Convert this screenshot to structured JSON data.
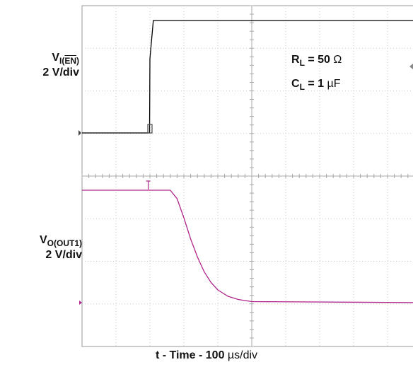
{
  "chart_data": {
    "type": "line",
    "title": "",
    "xlabel_prefix": "t - Time - 100 ",
    "xlabel_unit": "µs/div",
    "conditions": {
      "rl_sym": "R",
      "rl_sub": "L",
      "rl_eq": " = 50 ",
      "rl_unit": "Ω",
      "cl_sym": "C",
      "cl_sub": "L",
      "cl_eq": " = 1 ",
      "cl_unit": "µF"
    },
    "channels": [
      {
        "name_main": "V",
        "name_sub_pre": "I(",
        "name_sub_bar": "EN",
        "name_sub_post": ")",
        "scale": "2 V/div",
        "color": "#000000"
      },
      {
        "name_main": "V",
        "name_sub": "O(OUT1)",
        "scale": "2 V/div",
        "color": "#b0268c"
      }
    ],
    "x_unit": "div",
    "y_unit": "V",
    "xlim": [
      0,
      10
    ],
    "grid": {
      "x_divisions": 10,
      "y_divisions": 8
    },
    "series": [
      {
        "name": "V_I(EN)",
        "color": "#000000",
        "x": [
          0,
          1.99,
          2.0,
          2.1,
          10
        ],
        "y": [
          0,
          0,
          3.5,
          5.3,
          5.3
        ]
      },
      {
        "name": "V_O(OUT1)",
        "color": "#b0268c",
        "x": [
          0,
          2.6,
          2.8,
          3.0,
          3.2,
          3.4,
          3.6,
          3.8,
          4.0,
          4.3,
          4.6,
          5.0,
          10
        ],
        "y": [
          5.3,
          5.3,
          4.9,
          4.0,
          3.0,
          2.15,
          1.45,
          0.95,
          0.6,
          0.3,
          0.15,
          0.05,
          0
        ]
      }
    ]
  }
}
